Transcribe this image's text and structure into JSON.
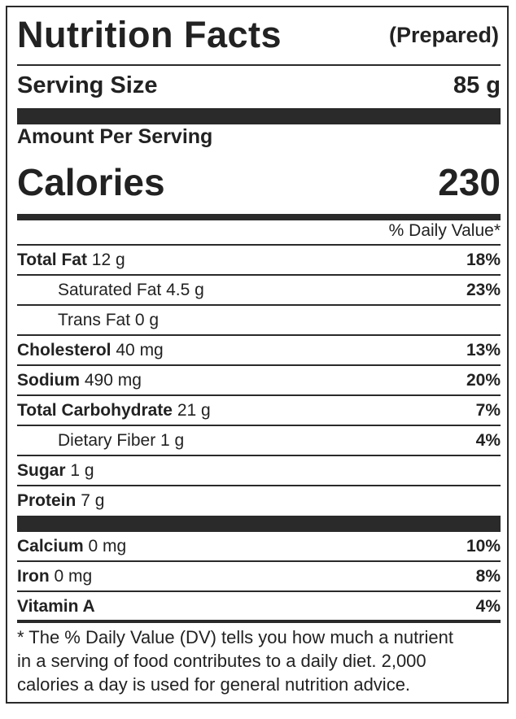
{
  "header": {
    "title": "Nutrition Facts",
    "subtitle": "(Prepared)"
  },
  "serving": {
    "label": "Serving Size",
    "value": "85 g"
  },
  "amount_per_serving": "Amount Per Serving",
  "calories": {
    "label": "Calories",
    "value": "230"
  },
  "daily_value_header": "% Daily Value*",
  "nutrients": [
    {
      "name": "Total Fat",
      "amount": "12 g",
      "dv": "18%"
    },
    {
      "name": "Saturated Fat",
      "amount": "4.5 g",
      "dv": "23%"
    },
    {
      "name": "Trans Fat",
      "amount": "0 g",
      "dv": ""
    },
    {
      "name": "Cholesterol",
      "amount": "40 mg",
      "dv": "13%"
    },
    {
      "name": "Sodium",
      "amount": "490 mg",
      "dv": "20%"
    },
    {
      "name": "Total Carbohydrate",
      "amount": "21 g",
      "dv": "7%"
    },
    {
      "name": "Dietary Fiber",
      "amount": "1 g",
      "dv": "4%"
    },
    {
      "name": "Sugar",
      "amount": "1 g",
      "dv": ""
    },
    {
      "name": "Protein",
      "amount": "7 g",
      "dv": ""
    }
  ],
  "vitamins": [
    {
      "name": "Calcium",
      "amount": "0 mg",
      "dv": "10%"
    },
    {
      "name": "Iron",
      "amount": "0 mg",
      "dv": "8%"
    },
    {
      "name": "Vitamin A",
      "amount": "",
      "dv": "4%"
    }
  ],
  "footnote": [
    "* The % Daily Value (DV) tells you how much a nutrient",
    "in a serving of food contributes to a daily diet. 2,000",
    "calories a day is used for general nutrition advice."
  ]
}
